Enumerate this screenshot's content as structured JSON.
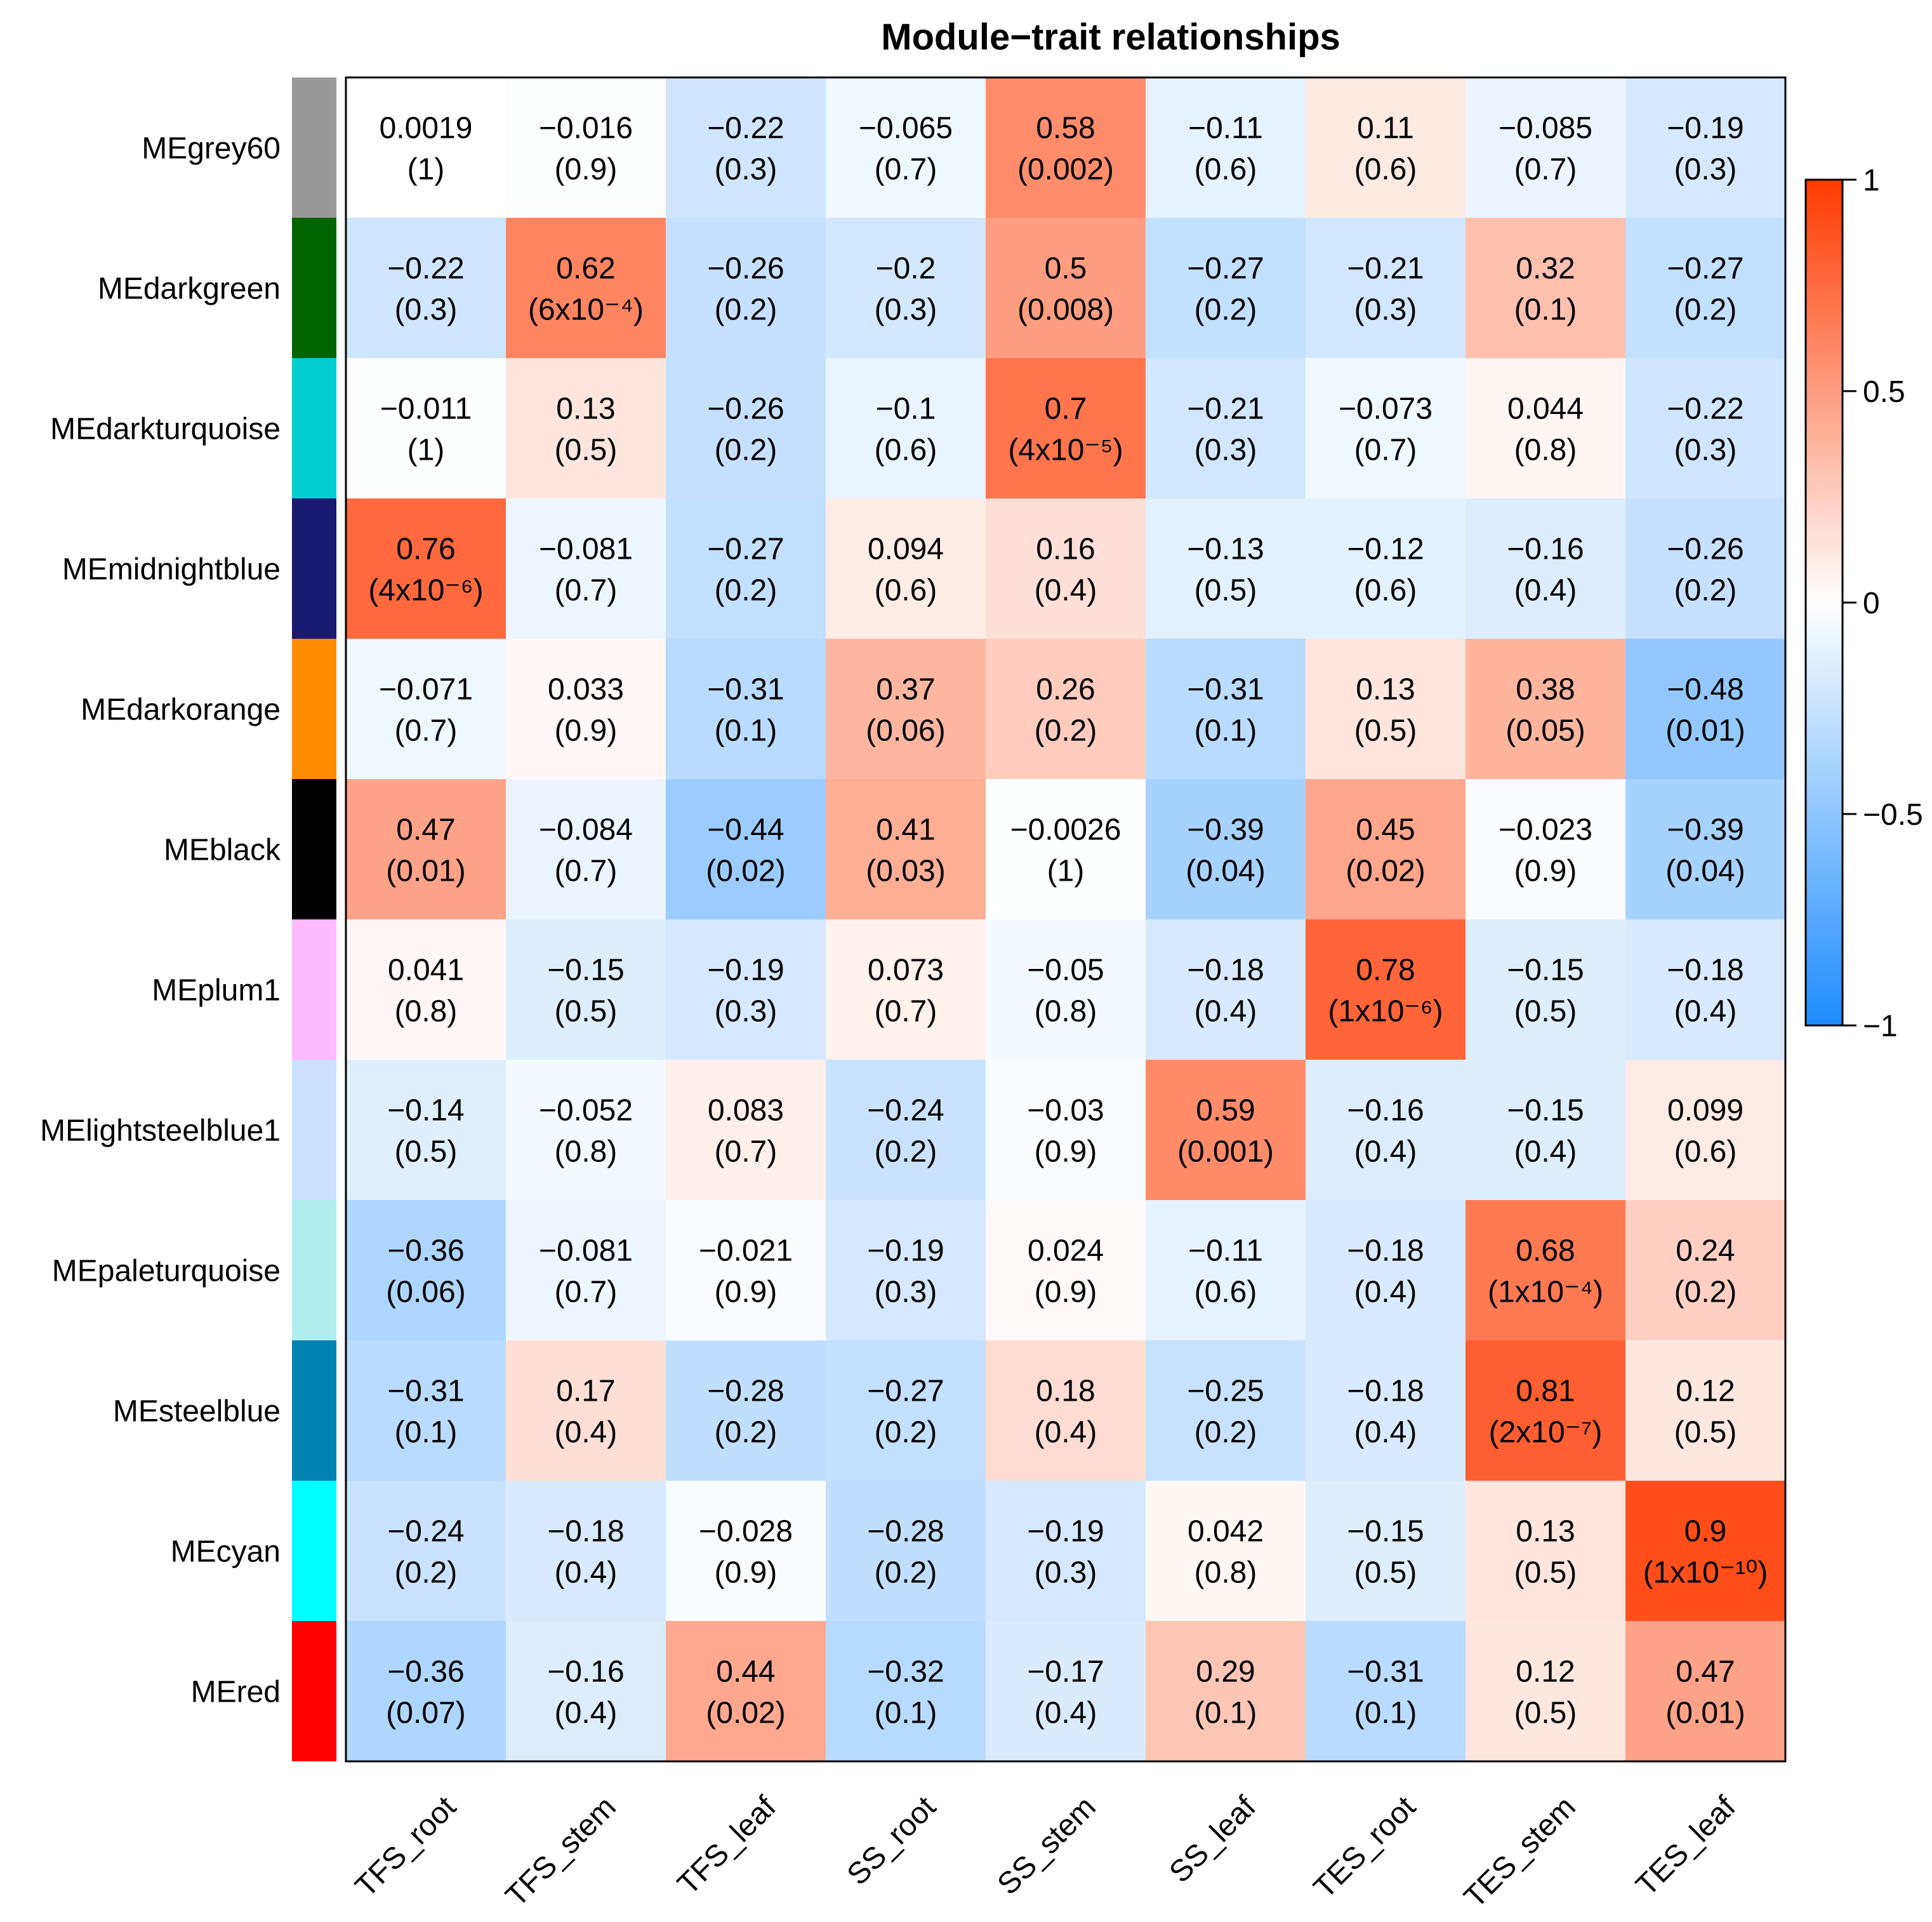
{
  "chart_data": {
    "type": "heatmap",
    "title": "Module−trait relationships",
    "columns": [
      "TFS_root",
      "TFS_stem",
      "TFS_leaf",
      "SS_root",
      "SS_stem",
      "SS_leaf",
      "TES_root",
      "TES_stem",
      "TES_leaf"
    ],
    "rows": [
      {
        "module": "MEgrey60",
        "color": "#999999",
        "cells": [
          {
            "r": 0.0019,
            "value_label": "0.0019",
            "p_label": "(1)"
          },
          {
            "r": -0.016,
            "value_label": "−0.016",
            "p_label": "(0.9)"
          },
          {
            "r": -0.22,
            "value_label": "−0.22",
            "p_label": "(0.3)"
          },
          {
            "r": -0.065,
            "value_label": "−0.065",
            "p_label": "(0.7)"
          },
          {
            "r": 0.58,
            "value_label": "0.58",
            "p_label": "(0.002)"
          },
          {
            "r": -0.11,
            "value_label": "−0.11",
            "p_label": "(0.6)"
          },
          {
            "r": 0.11,
            "value_label": "0.11",
            "p_label": "(0.6)"
          },
          {
            "r": -0.085,
            "value_label": "−0.085",
            "p_label": "(0.7)"
          },
          {
            "r": -0.19,
            "value_label": "−0.19",
            "p_label": "(0.3)"
          }
        ]
      },
      {
        "module": "MEdarkgreen",
        "color": "#006400",
        "cells": [
          {
            "r": -0.22,
            "value_label": "−0.22",
            "p_label": "(0.3)"
          },
          {
            "r": 0.62,
            "value_label": "0.62",
            "p_label": "(6x10⁻⁴)"
          },
          {
            "r": -0.26,
            "value_label": "−0.26",
            "p_label": "(0.2)"
          },
          {
            "r": -0.2,
            "value_label": "−0.2",
            "p_label": "(0.3)"
          },
          {
            "r": 0.5,
            "value_label": "0.5",
            "p_label": "(0.008)"
          },
          {
            "r": -0.27,
            "value_label": "−0.27",
            "p_label": "(0.2)"
          },
          {
            "r": -0.21,
            "value_label": "−0.21",
            "p_label": "(0.3)"
          },
          {
            "r": 0.32,
            "value_label": "0.32",
            "p_label": "(0.1)"
          },
          {
            "r": -0.27,
            "value_label": "−0.27",
            "p_label": "(0.2)"
          }
        ]
      },
      {
        "module": "MEdarkturquoise",
        "color": "#00CED1",
        "cells": [
          {
            "r": -0.011,
            "value_label": "−0.011",
            "p_label": "(1)"
          },
          {
            "r": 0.13,
            "value_label": "0.13",
            "p_label": "(0.5)"
          },
          {
            "r": -0.26,
            "value_label": "−0.26",
            "p_label": "(0.2)"
          },
          {
            "r": -0.1,
            "value_label": "−0.1",
            "p_label": "(0.6)"
          },
          {
            "r": 0.7,
            "value_label": "0.7",
            "p_label": "(4x10⁻⁵)"
          },
          {
            "r": -0.21,
            "value_label": "−0.21",
            "p_label": "(0.3)"
          },
          {
            "r": -0.073,
            "value_label": "−0.073",
            "p_label": "(0.7)"
          },
          {
            "r": 0.044,
            "value_label": "0.044",
            "p_label": "(0.8)"
          },
          {
            "r": -0.22,
            "value_label": "−0.22",
            "p_label": "(0.3)"
          }
        ]
      },
      {
        "module": "MEmidnightblue",
        "color": "#191970",
        "cells": [
          {
            "r": 0.76,
            "value_label": "0.76",
            "p_label": "(4x10⁻⁶)"
          },
          {
            "r": -0.081,
            "value_label": "−0.081",
            "p_label": "(0.7)"
          },
          {
            "r": -0.27,
            "value_label": "−0.27",
            "p_label": "(0.2)"
          },
          {
            "r": 0.094,
            "value_label": "0.094",
            "p_label": "(0.6)"
          },
          {
            "r": 0.16,
            "value_label": "0.16",
            "p_label": "(0.4)"
          },
          {
            "r": -0.13,
            "value_label": "−0.13",
            "p_label": "(0.5)"
          },
          {
            "r": -0.12,
            "value_label": "−0.12",
            "p_label": "(0.6)"
          },
          {
            "r": -0.16,
            "value_label": "−0.16",
            "p_label": "(0.4)"
          },
          {
            "r": -0.26,
            "value_label": "−0.26",
            "p_label": "(0.2)"
          }
        ]
      },
      {
        "module": "MEdarkorange",
        "color": "#FF8C00",
        "cells": [
          {
            "r": -0.071,
            "value_label": "−0.071",
            "p_label": "(0.7)"
          },
          {
            "r": 0.033,
            "value_label": "0.033",
            "p_label": "(0.9)"
          },
          {
            "r": -0.31,
            "value_label": "−0.31",
            "p_label": "(0.1)"
          },
          {
            "r": 0.37,
            "value_label": "0.37",
            "p_label": "(0.06)"
          },
          {
            "r": 0.26,
            "value_label": "0.26",
            "p_label": "(0.2)"
          },
          {
            "r": -0.31,
            "value_label": "−0.31",
            "p_label": "(0.1)"
          },
          {
            "r": 0.13,
            "value_label": "0.13",
            "p_label": "(0.5)"
          },
          {
            "r": 0.38,
            "value_label": "0.38",
            "p_label": "(0.05)"
          },
          {
            "r": -0.48,
            "value_label": "−0.48",
            "p_label": "(0.01)"
          }
        ]
      },
      {
        "module": "MEblack",
        "color": "#000000",
        "cells": [
          {
            "r": 0.47,
            "value_label": "0.47",
            "p_label": "(0.01)"
          },
          {
            "r": -0.084,
            "value_label": "−0.084",
            "p_label": "(0.7)"
          },
          {
            "r": -0.44,
            "value_label": "−0.44",
            "p_label": "(0.02)"
          },
          {
            "r": 0.41,
            "value_label": "0.41",
            "p_label": "(0.03)"
          },
          {
            "r": -0.0026,
            "value_label": "−0.0026",
            "p_label": "(1)"
          },
          {
            "r": -0.39,
            "value_label": "−0.39",
            "p_label": "(0.04)"
          },
          {
            "r": 0.45,
            "value_label": "0.45",
            "p_label": "(0.02)"
          },
          {
            "r": -0.023,
            "value_label": "−0.023",
            "p_label": "(0.9)"
          },
          {
            "r": -0.39,
            "value_label": "−0.39",
            "p_label": "(0.04)"
          }
        ]
      },
      {
        "module": "MEplum1",
        "color": "#FFBBFF",
        "cells": [
          {
            "r": 0.041,
            "value_label": "0.041",
            "p_label": "(0.8)"
          },
          {
            "r": -0.15,
            "value_label": "−0.15",
            "p_label": "(0.5)"
          },
          {
            "r": -0.19,
            "value_label": "−0.19",
            "p_label": "(0.3)"
          },
          {
            "r": 0.073,
            "value_label": "0.073",
            "p_label": "(0.7)"
          },
          {
            "r": -0.05,
            "value_label": "−0.05",
            "p_label": "(0.8)"
          },
          {
            "r": -0.18,
            "value_label": "−0.18",
            "p_label": "(0.4)"
          },
          {
            "r": 0.78,
            "value_label": "0.78",
            "p_label": "(1x10⁻⁶)"
          },
          {
            "r": -0.15,
            "value_label": "−0.15",
            "p_label": "(0.5)"
          },
          {
            "r": -0.18,
            "value_label": "−0.18",
            "p_label": "(0.4)"
          }
        ]
      },
      {
        "module": "MElightsteelblue1",
        "color": "#CAE1FF",
        "cells": [
          {
            "r": -0.14,
            "value_label": "−0.14",
            "p_label": "(0.5)"
          },
          {
            "r": -0.052,
            "value_label": "−0.052",
            "p_label": "(0.8)"
          },
          {
            "r": 0.083,
            "value_label": "0.083",
            "p_label": "(0.7)"
          },
          {
            "r": -0.24,
            "value_label": "−0.24",
            "p_label": "(0.2)"
          },
          {
            "r": -0.03,
            "value_label": "−0.03",
            "p_label": "(0.9)"
          },
          {
            "r": 0.59,
            "value_label": "0.59",
            "p_label": "(0.001)"
          },
          {
            "r": -0.16,
            "value_label": "−0.16",
            "p_label": "(0.4)"
          },
          {
            "r": -0.15,
            "value_label": "−0.15",
            "p_label": "(0.4)"
          },
          {
            "r": 0.099,
            "value_label": "0.099",
            "p_label": "(0.6)"
          }
        ]
      },
      {
        "module": "MEpaleturquoise",
        "color": "#AFEEEE",
        "cells": [
          {
            "r": -0.36,
            "value_label": "−0.36",
            "p_label": "(0.06)"
          },
          {
            "r": -0.081,
            "value_label": "−0.081",
            "p_label": "(0.7)"
          },
          {
            "r": -0.021,
            "value_label": "−0.021",
            "p_label": "(0.9)"
          },
          {
            "r": -0.19,
            "value_label": "−0.19",
            "p_label": "(0.3)"
          },
          {
            "r": 0.024,
            "value_label": "0.024",
            "p_label": "(0.9)"
          },
          {
            "r": -0.11,
            "value_label": "−0.11",
            "p_label": "(0.6)"
          },
          {
            "r": -0.18,
            "value_label": "−0.18",
            "p_label": "(0.4)"
          },
          {
            "r": 0.68,
            "value_label": "0.68",
            "p_label": "(1x10⁻⁴)"
          },
          {
            "r": 0.24,
            "value_label": "0.24",
            "p_label": "(0.2)"
          }
        ]
      },
      {
        "module": "MEsteelblue",
        "color": "#0082B4",
        "cells": [
          {
            "r": -0.31,
            "value_label": "−0.31",
            "p_label": "(0.1)"
          },
          {
            "r": 0.17,
            "value_label": "0.17",
            "p_label": "(0.4)"
          },
          {
            "r": -0.28,
            "value_label": "−0.28",
            "p_label": "(0.2)"
          },
          {
            "r": -0.27,
            "value_label": "−0.27",
            "p_label": "(0.2)"
          },
          {
            "r": 0.18,
            "value_label": "0.18",
            "p_label": "(0.4)"
          },
          {
            "r": -0.25,
            "value_label": "−0.25",
            "p_label": "(0.2)"
          },
          {
            "r": -0.18,
            "value_label": "−0.18",
            "p_label": "(0.4)"
          },
          {
            "r": 0.81,
            "value_label": "0.81",
            "p_label": "(2x10⁻⁷)"
          },
          {
            "r": 0.12,
            "value_label": "0.12",
            "p_label": "(0.5)"
          }
        ]
      },
      {
        "module": "MEcyan",
        "color": "#00FFFF",
        "cells": [
          {
            "r": -0.24,
            "value_label": "−0.24",
            "p_label": "(0.2)"
          },
          {
            "r": -0.18,
            "value_label": "−0.18",
            "p_label": "(0.4)"
          },
          {
            "r": -0.028,
            "value_label": "−0.028",
            "p_label": "(0.9)"
          },
          {
            "r": -0.28,
            "value_label": "−0.28",
            "p_label": "(0.2)"
          },
          {
            "r": -0.19,
            "value_label": "−0.19",
            "p_label": "(0.3)"
          },
          {
            "r": 0.042,
            "value_label": "0.042",
            "p_label": "(0.8)"
          },
          {
            "r": -0.15,
            "value_label": "−0.15",
            "p_label": "(0.5)"
          },
          {
            "r": 0.13,
            "value_label": "0.13",
            "p_label": "(0.5)"
          },
          {
            "r": 0.9,
            "value_label": "0.9",
            "p_label": "(1x10⁻¹⁰)"
          }
        ]
      },
      {
        "module": "MEred",
        "color": "#FF0000",
        "cells": [
          {
            "r": -0.36,
            "value_label": "−0.36",
            "p_label": "(0.07)"
          },
          {
            "r": -0.16,
            "value_label": "−0.16",
            "p_label": "(0.4)"
          },
          {
            "r": 0.44,
            "value_label": "0.44",
            "p_label": "(0.02)"
          },
          {
            "r": -0.32,
            "value_label": "−0.32",
            "p_label": "(0.1)"
          },
          {
            "r": -0.17,
            "value_label": "−0.17",
            "p_label": "(0.4)"
          },
          {
            "r": 0.29,
            "value_label": "0.29",
            "p_label": "(0.1)"
          },
          {
            "r": -0.31,
            "value_label": "−0.31",
            "p_label": "(0.1)"
          },
          {
            "r": 0.12,
            "value_label": "0.12",
            "p_label": "(0.5)"
          },
          {
            "r": 0.47,
            "value_label": "0.47",
            "p_label": "(0.01)"
          }
        ]
      }
    ],
    "colorbar": {
      "range": [
        -1,
        1
      ],
      "ticks": [
        1,
        0.5,
        0,
        -0.5,
        -1
      ],
      "tick_labels": [
        "1",
        "0.5",
        "0",
        "−0.5",
        "−1"
      ],
      "low_color": "#1E8CFF",
      "mid_color": "#FFFFFF",
      "high_color": "#FF3A00"
    },
    "colors": {
      "border": "#000000",
      "background": "#FFFFFF"
    }
  }
}
